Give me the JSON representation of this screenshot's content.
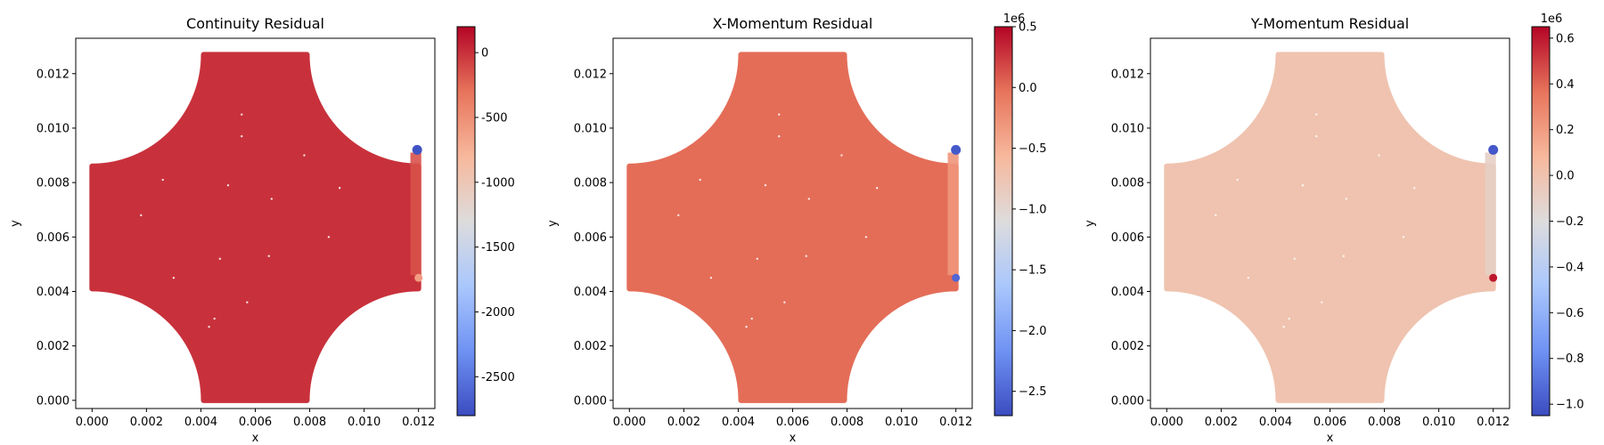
{
  "colormap": {
    "name": "coolwarm",
    "stops": [
      "#3b4cc0",
      "#6f92f3",
      "#aac7fd",
      "#dddcdc",
      "#f7b89c",
      "#e7745b",
      "#b40426"
    ]
  },
  "chart_data": [
    {
      "type": "scatter",
      "title": "Continuity Residual",
      "xlabel": "x",
      "ylabel": "y",
      "xlim": [
        -0.0006,
        0.0126
      ],
      "ylim": [
        -0.0003,
        0.0133
      ],
      "xticks": [
        "0.000",
        "0.002",
        "0.004",
        "0.006",
        "0.008",
        "0.010",
        "0.012"
      ],
      "yticks": [
        "0.000",
        "0.002",
        "0.004",
        "0.006",
        "0.008",
        "0.010",
        "0.012"
      ],
      "colorbar": {
        "min": -2800,
        "max": 200,
        "exponent_label": "",
        "ticks": [
          "0",
          "-500",
          "-1000",
          "-1500",
          "-2000",
          "-2500"
        ],
        "tick_values": [
          0,
          -500,
          -1000,
          -1500,
          -2000,
          -2500
        ]
      },
      "field_value": 0,
      "left_edge_value": 0,
      "right_edge_value": -150,
      "hotspots": [
        {
          "x": 0.01195,
          "y": 0.0092,
          "value": -2750
        },
        {
          "x": 0.012,
          "y": 0.0045,
          "value": -600
        }
      ]
    },
    {
      "type": "scatter",
      "title": "X-Momentum Residual",
      "xlabel": "x",
      "ylabel": "y",
      "xlim": [
        -0.0006,
        0.0126
      ],
      "ylim": [
        -0.0003,
        0.0133
      ],
      "xticks": [
        "0.000",
        "0.002",
        "0.004",
        "0.006",
        "0.008",
        "0.010",
        "0.012"
      ],
      "yticks": [
        "0.000",
        "0.002",
        "0.004",
        "0.006",
        "0.008",
        "0.010",
        "0.012"
      ],
      "colorbar": {
        "min": -2.7,
        "max": 0.5,
        "exponent_label": "1e6",
        "ticks": [
          "0.5",
          "0.0",
          "−0.5",
          "−1.0",
          "−1.5",
          "−2.0",
          "−2.5"
        ],
        "tick_values": [
          0.5,
          0.0,
          -0.5,
          -1.0,
          -1.5,
          -2.0,
          -2.5
        ]
      },
      "field_value": 0.0,
      "left_edge_value": 0.0,
      "right_edge_value": -0.3,
      "hotspots": [
        {
          "x": 0.012,
          "y": 0.0092,
          "value": -2.6
        },
        {
          "x": 0.012,
          "y": 0.0045,
          "value": -2.5
        }
      ]
    },
    {
      "type": "scatter",
      "title": "Y-Momentum Residual",
      "xlabel": "x",
      "ylabel": "y",
      "xlim": [
        -0.0006,
        0.0126
      ],
      "ylim": [
        -0.0003,
        0.0133
      ],
      "xticks": [
        "0.000",
        "0.002",
        "0.004",
        "0.006",
        "0.008",
        "0.010",
        "0.012"
      ],
      "yticks": [
        "0.000",
        "0.002",
        "0.004",
        "0.006",
        "0.008",
        "0.010",
        "0.012"
      ],
      "colorbar": {
        "min": -1.05,
        "max": 0.65,
        "exponent_label": "1e6",
        "ticks": [
          "0.6",
          "0.4",
          "0.2",
          "0.0",
          "−0.2",
          "−0.4",
          "−0.6",
          "−0.8",
          "−1.0"
        ],
        "tick_values": [
          0.6,
          0.4,
          0.2,
          0.0,
          -0.2,
          -0.4,
          -0.6,
          -0.8,
          -1.0
        ]
      },
      "field_value": 0.0,
      "left_edge_value": 0.0,
      "right_edge_value": -0.1,
      "hotspots": [
        {
          "x": 0.012,
          "y": 0.0092,
          "value": -1.0
        },
        {
          "x": 0.012,
          "y": 0.0045,
          "value": 0.6
        }
      ]
    }
  ]
}
